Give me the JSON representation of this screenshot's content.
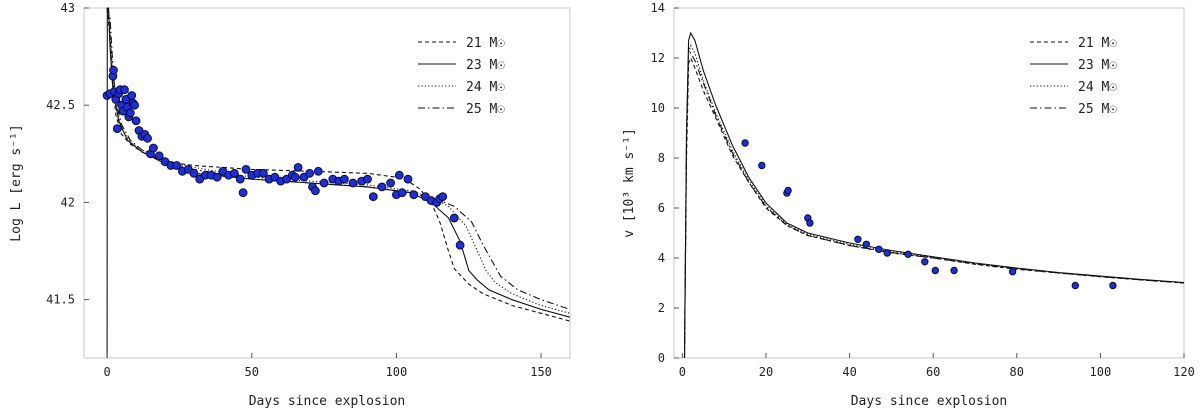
{
  "chart_data": [
    {
      "type": "line",
      "xlabel": "Days since explosion",
      "ylabel": "Log L [erg s⁻¹]",
      "xlim": [
        -8,
        160
      ],
      "ylim": [
        41.2,
        43.0
      ],
      "xticks": [
        0,
        50,
        100,
        150
      ],
      "yticks": [
        41.5,
        42,
        42.5,
        43
      ],
      "ytick_labels": [
        "41.5",
        "42",
        "42.5",
        "43"
      ],
      "legend_position": "top-right",
      "series": [
        {
          "name": "21 M☉",
          "style": "dashed",
          "x": [
            0,
            1,
            2,
            3,
            5,
            8,
            12,
            20,
            30,
            50,
            70,
            90,
            100,
            105,
            108,
            112,
            115,
            118,
            120,
            125,
            130,
            140,
            150,
            160
          ],
          "y": [
            43.0,
            42.85,
            42.62,
            42.45,
            42.35,
            42.3,
            42.26,
            42.21,
            42.19,
            42.17,
            42.16,
            42.15,
            42.13,
            42.1,
            42.07,
            42.0,
            41.9,
            41.75,
            41.66,
            41.58,
            41.53,
            41.47,
            41.43,
            41.39
          ]
        },
        {
          "name": "23 M☉",
          "style": "solid",
          "x": [
            0,
            0.05,
            0.5,
            1,
            2,
            4,
            7,
            12,
            20,
            30,
            50,
            70,
            90,
            105,
            112,
            118,
            122,
            125,
            128,
            132,
            140,
            150,
            160
          ],
          "y": [
            41.2,
            43.0,
            43.0,
            42.8,
            42.58,
            42.42,
            42.32,
            42.26,
            42.2,
            42.15,
            42.12,
            42.1,
            42.08,
            42.05,
            42.0,
            41.92,
            41.8,
            41.65,
            41.6,
            41.55,
            41.5,
            41.45,
            41.41
          ]
        },
        {
          "name": "24 M☉",
          "style": "dotted",
          "x": [
            0,
            1,
            2,
            3,
            5,
            8,
            12,
            20,
            30,
            50,
            70,
            90,
            105,
            113,
            118,
            124,
            128,
            131,
            134,
            140,
            150,
            160
          ],
          "y": [
            43.0,
            42.9,
            42.65,
            42.5,
            42.38,
            42.31,
            42.27,
            42.22,
            42.18,
            42.13,
            42.11,
            42.09,
            42.06,
            42.02,
            41.98,
            41.88,
            41.75,
            41.65,
            41.59,
            41.53,
            41.47,
            41.43
          ]
        },
        {
          "name": "25 M☉",
          "style": "dashdot",
          "x": [
            0,
            1,
            2,
            3,
            5,
            8,
            12,
            20,
            30,
            50,
            70,
            90,
            105,
            115,
            120,
            126,
            130,
            133,
            136,
            142,
            150,
            160
          ],
          "y": [
            43.0,
            42.95,
            42.7,
            42.52,
            42.4,
            42.32,
            42.27,
            42.21,
            42.17,
            42.12,
            42.1,
            42.08,
            42.05,
            42.01,
            41.98,
            41.9,
            41.78,
            41.7,
            41.62,
            41.55,
            41.5,
            41.45
          ]
        }
      ],
      "observed": {
        "x": [
          0,
          1,
          2,
          2.2,
          2.5,
          3,
          3.5,
          4,
          4.5,
          5,
          5.5,
          6,
          6.5,
          7,
          7.5,
          8,
          8.5,
          9,
          9.5,
          10,
          11,
          12,
          13,
          14,
          15,
          16,
          18,
          20,
          22,
          24,
          26,
          28,
          30,
          32,
          34,
          36,
          38,
          40,
          42,
          44,
          46,
          47,
          48,
          50,
          52,
          54,
          56,
          58,
          60,
          62,
          64,
          65,
          66,
          68,
          70,
          71,
          72,
          73,
          75,
          78,
          80,
          82,
          85,
          88,
          90,
          92,
          95,
          98,
          100,
          101,
          102,
          104,
          106,
          110,
          112,
          114,
          115,
          116,
          120,
          122
        ],
        "y": [
          42.55,
          42.56,
          42.65,
          42.68,
          42.57,
          42.53,
          42.38,
          42.56,
          42.58,
          42.5,
          42.47,
          42.58,
          42.53,
          42.49,
          42.44,
          42.46,
          42.55,
          42.51,
          42.5,
          42.42,
          42.37,
          42.34,
          42.35,
          42.33,
          42.25,
          42.28,
          42.24,
          42.21,
          42.19,
          42.19,
          42.16,
          42.17,
          42.15,
          42.12,
          42.14,
          42.14,
          42.13,
          42.16,
          42.14,
          42.15,
          42.12,
          42.05,
          42.17,
          42.14,
          42.15,
          42.15,
          42.12,
          42.13,
          42.11,
          42.12,
          42.14,
          42.13,
          42.18,
          42.13,
          42.15,
          42.08,
          42.06,
          42.16,
          42.1,
          42.12,
          42.11,
          42.12,
          42.1,
          42.11,
          42.12,
          42.03,
          42.08,
          42.1,
          42.04,
          42.14,
          42.05,
          42.12,
          42.04,
          42.03,
          42.01,
          42.0,
          42.02,
          42.03,
          41.92,
          41.78
        ]
      }
    },
    {
      "type": "line",
      "xlabel": "Days since explosion",
      "ylabel": "v [10³ km s⁻¹]",
      "xlim": [
        -2,
        120
      ],
      "ylim": [
        0,
        14
      ],
      "xticks": [
        0,
        20,
        40,
        60,
        80,
        100,
        120
      ],
      "yticks": [
        0,
        2,
        4,
        6,
        8,
        10,
        12,
        14
      ],
      "ytick_labels": [
        "0",
        "2",
        "4",
        "6",
        "8",
        "10",
        "12",
        "14"
      ],
      "legend_position": "top-right",
      "series": [
        {
          "name": "21 M☉",
          "style": "dashed",
          "x": [
            0.5,
            1.0,
            1.5,
            2,
            3,
            5,
            8,
            12,
            16,
            20,
            25,
            30,
            40,
            50,
            60,
            70,
            80,
            90,
            100,
            110,
            120
          ],
          "y": [
            0,
            8,
            11.8,
            12.0,
            11.6,
            10.7,
            9.6,
            8.1,
            7.0,
            6.0,
            5.3,
            4.9,
            4.5,
            4.2,
            4.0,
            3.75,
            3.55,
            3.4,
            3.25,
            3.12,
            3.0
          ]
        },
        {
          "name": "23 M☉",
          "style": "solid",
          "x": [
            0.5,
            1.0,
            1.5,
            2,
            3,
            5,
            8,
            12,
            16,
            20,
            25,
            30,
            40,
            50,
            60,
            70,
            80,
            90,
            100,
            110,
            120
          ],
          "y": [
            0,
            9,
            12.7,
            13.0,
            12.7,
            11.5,
            10.1,
            8.5,
            7.2,
            6.2,
            5.4,
            5.0,
            4.6,
            4.3,
            4.05,
            3.8,
            3.6,
            3.42,
            3.28,
            3.14,
            3.02
          ]
        },
        {
          "name": "24 M☉",
          "style": "dotted",
          "x": [
            0.5,
            1.0,
            1.5,
            2,
            3,
            5,
            8,
            12,
            16,
            20,
            25,
            30,
            40,
            50,
            60,
            70,
            80,
            90,
            100,
            110,
            120
          ],
          "y": [
            0,
            8.5,
            12.2,
            12.5,
            12.2,
            11.1,
            9.8,
            8.3,
            7.1,
            6.1,
            5.35,
            4.95,
            4.55,
            4.25,
            4.02,
            3.78,
            3.58,
            3.41,
            3.27,
            3.13,
            3.01
          ]
        },
        {
          "name": "25 M☉",
          "style": "dashdot",
          "x": [
            0.5,
            1.0,
            1.5,
            2,
            3,
            5,
            8,
            12,
            16,
            20,
            25,
            30,
            40,
            50,
            60,
            70,
            80,
            90,
            100,
            110,
            120
          ],
          "y": [
            0,
            8.8,
            12.4,
            12.2,
            11.9,
            11.0,
            9.7,
            8.2,
            7.0,
            6.05,
            5.3,
            4.9,
            4.5,
            4.22,
            4.0,
            3.77,
            3.57,
            3.4,
            3.26,
            3.12,
            3.0
          ]
        }
      ],
      "observed": {
        "x": [
          15,
          19,
          25,
          25.3,
          30,
          30.5,
          42,
          44,
          47,
          49,
          54,
          58,
          60.5,
          65,
          79,
          94,
          103
        ],
        "y": [
          8.6,
          7.7,
          6.6,
          6.7,
          5.6,
          5.4,
          4.75,
          4.55,
          4.35,
          4.2,
          4.15,
          3.85,
          3.5,
          3.5,
          3.45,
          2.9,
          2.9
        ]
      }
    }
  ]
}
